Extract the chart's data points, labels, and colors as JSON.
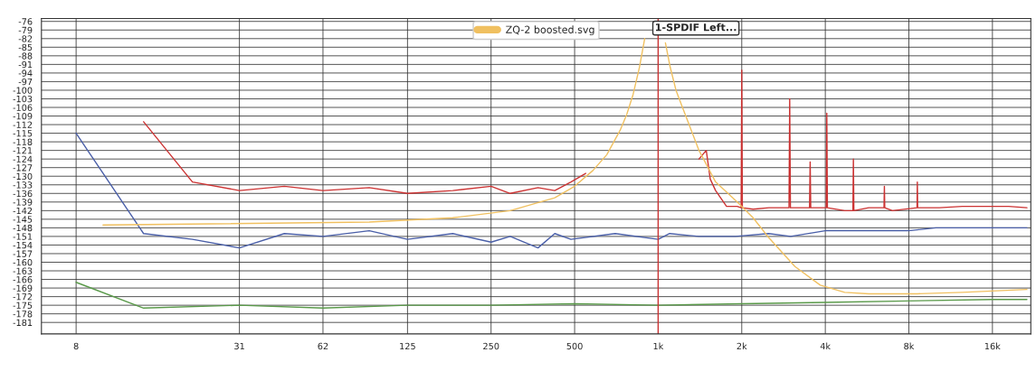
{
  "chart_data": {
    "type": "line",
    "log": "x",
    "xlim": [
      6,
      22000
    ],
    "ylim": [
      -185,
      -75
    ],
    "xticks": [
      8,
      31,
      62,
      125,
      250,
      500,
      {
        "value": 1000,
        "label": "1k"
      },
      {
        "value": 2000,
        "label": "2k"
      },
      {
        "value": 4000,
        "label": "4k"
      },
      {
        "value": 8000,
        "label": "8k"
      },
      {
        "value": 16000,
        "label": "16k"
      }
    ],
    "yticks": [
      -76,
      -79,
      -82,
      -85,
      -88,
      -91,
      -94,
      -97,
      -100,
      -103,
      -106,
      -109,
      -112,
      -115,
      -118,
      -121,
      -124,
      -127,
      -130,
      -133,
      -136,
      -139,
      -142,
      -145,
      -148,
      -151,
      -154,
      -157,
      -160,
      -163,
      -166,
      -169,
      -172,
      -175,
      -178,
      -181
    ],
    "grid": true,
    "legend": "top",
    "annotations": [
      "1-SPDIF Left..."
    ],
    "ref_lines": [
      {
        "axis": "x",
        "value": 1000,
        "color": "#cc3333"
      }
    ],
    "series": [
      {
        "color": "#cc3333",
        "x": [
          14,
          21,
          31,
          45,
          62,
          91,
          125,
          182,
          250,
          293,
          369,
          424,
          485,
          548,
          700,
          1403,
          1490,
          1540,
          1610,
          1763,
          1926,
          1990,
          2000,
          2010,
          2197,
          2506,
          2960,
          2977,
          2995,
          3510,
          3528,
          3545,
          4030,
          4050,
          4070,
          4697,
          5030,
          5049,
          5070,
          5733,
          6510,
          6530,
          6550,
          6979,
          8560,
          8582,
          8605,
          10292,
          12470,
          18290,
          21300
        ],
        "values": [
          -111,
          -132,
          -135,
          -133.5,
          -135,
          -134,
          -136,
          -135,
          -133.5,
          -136,
          -134,
          -135,
          -132,
          -129,
          null,
          -124,
          -121,
          -131,
          -135,
          -140.5,
          -140.5,
          -141,
          -93,
          -141,
          -141.5,
          -141,
          -141,
          -103,
          -141,
          -141,
          -125,
          -141,
          -141,
          -108,
          -141,
          -142,
          -142,
          -124,
          -142,
          -141,
          -141,
          -133.5,
          -141,
          -142,
          -141,
          -132,
          -141,
          -141,
          -140.5,
          -140.5,
          -141
        ]
      },
      {
        "color": "#4a5fa8",
        "x": [
          8,
          14,
          21,
          31,
          45,
          62,
          91,
          125,
          182,
          250,
          293,
          369,
          424,
          485,
          700,
          1000,
          1100,
          1400,
          1900,
          2500,
          3000,
          4000,
          5000,
          6000,
          8000,
          10000,
          12000,
          16000,
          21300
        ],
        "values": [
          -115,
          -150,
          -152,
          -155,
          -150,
          -151,
          -149,
          -152,
          -150,
          -153,
          -151,
          -155,
          -150,
          -152,
          -150,
          -152,
          -150,
          -151,
          -151,
          -150,
          -151,
          -149,
          -149,
          -149,
          -149,
          -148,
          -148,
          -148,
          -148
        ]
      },
      {
        "color": "#5a9a4a",
        "x": [
          8,
          14,
          31,
          62,
          125,
          250,
          500,
          1000,
          2000,
          4000,
          8000,
          16000,
          21300
        ],
        "values": [
          -167,
          -176,
          -175,
          -176,
          -175,
          -175,
          -174.5,
          -175,
          -174.5,
          -174,
          -173.5,
          -173,
          -173
        ]
      },
      {
        "name": "ZQ-2 boosted.svg",
        "color": "#f0c060",
        "x": [
          10,
          91,
          182,
          293,
          424,
          500,
          582,
          653,
          729,
          770,
          812,
          856,
          894,
          926,
          1026,
          1062,
          1105,
          1159,
          1218,
          1403,
          1610,
          1926,
          2197,
          2506,
          3109,
          3835,
          4697,
          5733,
          8582,
          12470,
          21300
        ],
        "values": [
          -147,
          -146,
          -144.5,
          -142,
          -137.5,
          -133.5,
          -128,
          -122.5,
          -114,
          -108.5,
          -101.5,
          -92,
          -82,
          null,
          null,
          -83.5,
          -92,
          -100,
          -105.5,
          -121,
          -132,
          -139,
          -144.5,
          -151.5,
          -161.5,
          -168,
          -170.5,
          -171,
          -171,
          -170.5,
          -169.5
        ]
      }
    ]
  }
}
